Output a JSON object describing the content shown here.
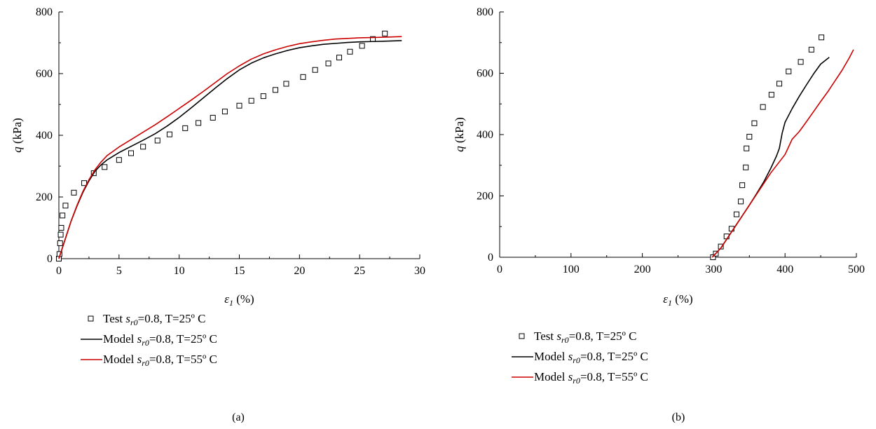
{
  "chart_data": [
    {
      "id": "a",
      "type": "line",
      "panel_label": "(a)",
      "xlabel": "ε1 (%)",
      "ylabel": "q (kPa)",
      "xlim": [
        0,
        30
      ],
      "ylim": [
        0,
        800
      ],
      "x_ticks": [
        0,
        5,
        10,
        15,
        20,
        25,
        30
      ],
      "y_ticks": [
        0,
        200,
        400,
        600,
        800
      ],
      "legend_position": "below",
      "series": [
        {
          "name": "Test sr0=0.8, T=25º C",
          "kind": "markers",
          "color": "#000000",
          "x": [
            0.0,
            0.05,
            0.1,
            0.15,
            0.2,
            0.3,
            0.55,
            1.25,
            2.1,
            2.9,
            3.8,
            5.0,
            6.0,
            7.0,
            8.2,
            9.2,
            10.5,
            11.6,
            12.8,
            13.8,
            15.0,
            16.0,
            17.0,
            18.0,
            18.9,
            20.3,
            21.3,
            22.4,
            23.3,
            24.2,
            25.2,
            26.1,
            27.1
          ],
          "y": [
            0,
            15,
            50,
            78,
            100,
            140,
            172,
            214,
            245,
            277,
            297,
            320,
            342,
            363,
            383,
            403,
            423,
            440,
            457,
            477,
            496,
            512,
            527,
            547,
            567,
            589,
            612,
            633,
            652,
            671,
            690,
            712,
            730
          ]
        },
        {
          "name": "Model sr0=0.8, T=25º C",
          "kind": "line",
          "color": "#000000",
          "x": [
            0,
            0.5,
            1.0,
            1.5,
            2.0,
            2.5,
            3.0,
            3.5,
            4.0,
            5.0,
            6.0,
            7.0,
            8.0,
            9.0,
            10.0,
            11.0,
            12.0,
            13.0,
            14.0,
            15.0,
            16.0,
            17.0,
            18.0,
            19.0,
            20.0,
            21.0,
            22.0,
            23.0,
            24.0,
            25.0,
            26.0,
            27.0,
            28.5
          ],
          "y": [
            0,
            60,
            120,
            170,
            215,
            252,
            283,
            304,
            320,
            344,
            364,
            384,
            405,
            430,
            458,
            489,
            521,
            553,
            584,
            612,
            634,
            651,
            664,
            675,
            684,
            690,
            695,
            698,
            701,
            703,
            704,
            705,
            707
          ]
        },
        {
          "name": "Model sr0=0.8, T=55º C",
          "kind": "line",
          "color": "#cc0000",
          "x": [
            0,
            0.5,
            1.0,
            1.5,
            2.0,
            2.5,
            3.0,
            3.5,
            4.0,
            5.0,
            6.0,
            7.0,
            8.0,
            9.0,
            10.0,
            11.0,
            12.0,
            13.0,
            14.0,
            15.0,
            16.0,
            17.0,
            18.0,
            19.0,
            20.0,
            21.0,
            22.0,
            23.0,
            24.0,
            25.0,
            26.0,
            27.0,
            28.5
          ],
          "y": [
            0,
            60,
            120,
            172,
            218,
            256,
            288,
            313,
            334,
            362,
            386,
            410,
            434,
            460,
            487,
            514,
            542,
            571,
            600,
            625,
            647,
            664,
            677,
            688,
            697,
            703,
            708,
            712,
            714,
            716,
            717,
            718,
            720
          ]
        }
      ]
    },
    {
      "id": "b",
      "type": "line",
      "panel_label": "(b)",
      "xlabel": "ε1 (%)",
      "ylabel": "q (kPa)",
      "xlim": [
        0,
        500
      ],
      "ylim": [
        0,
        800
      ],
      "x_ticks": [
        0,
        100,
        200,
        300,
        400,
        500
      ],
      "y_ticks": [
        0,
        200,
        400,
        600,
        800
      ],
      "legend_position": "below",
      "series": [
        {
          "name": "Test sr0=0.8, T=25º C",
          "kind": "markers",
          "color": "#000000",
          "x": [
            299,
            303,
            310,
            318,
            325,
            332,
            338,
            340,
            345,
            346,
            350,
            357,
            369,
            381,
            392,
            405,
            422,
            437,
            451
          ],
          "y": [
            0,
            12,
            35,
            68,
            93,
            140,
            182,
            235,
            293,
            355,
            393,
            437,
            490,
            530,
            566,
            606,
            637,
            677,
            717
          ]
        },
        {
          "name": "Model sr0=0.8, T=25º C",
          "kind": "line",
          "color": "#000000",
          "x": [
            298,
            310,
            320,
            330,
            340,
            350,
            360,
            370,
            380,
            388,
            392,
            394,
            396,
            400,
            410,
            420,
            430,
            440,
            450,
            462
          ],
          "y": [
            0,
            30,
            65,
            100,
            135,
            170,
            207,
            245,
            290,
            330,
            355,
            380,
            405,
            440,
            485,
            525,
            562,
            598,
            630,
            652
          ]
        },
        {
          "name": "Model sr0=0.8, T=55º C",
          "kind": "line",
          "color": "#cc0000",
          "x": [
            298,
            310,
            320,
            330,
            340,
            350,
            360,
            370,
            380,
            390,
            400,
            405,
            410,
            420,
            430,
            440,
            450,
            460,
            470,
            480,
            490,
            496
          ],
          "y": [
            0,
            30,
            65,
            100,
            135,
            170,
            205,
            240,
            275,
            305,
            335,
            360,
            385,
            410,
            442,
            475,
            508,
            540,
            575,
            610,
            650,
            677
          ]
        }
      ]
    }
  ]
}
